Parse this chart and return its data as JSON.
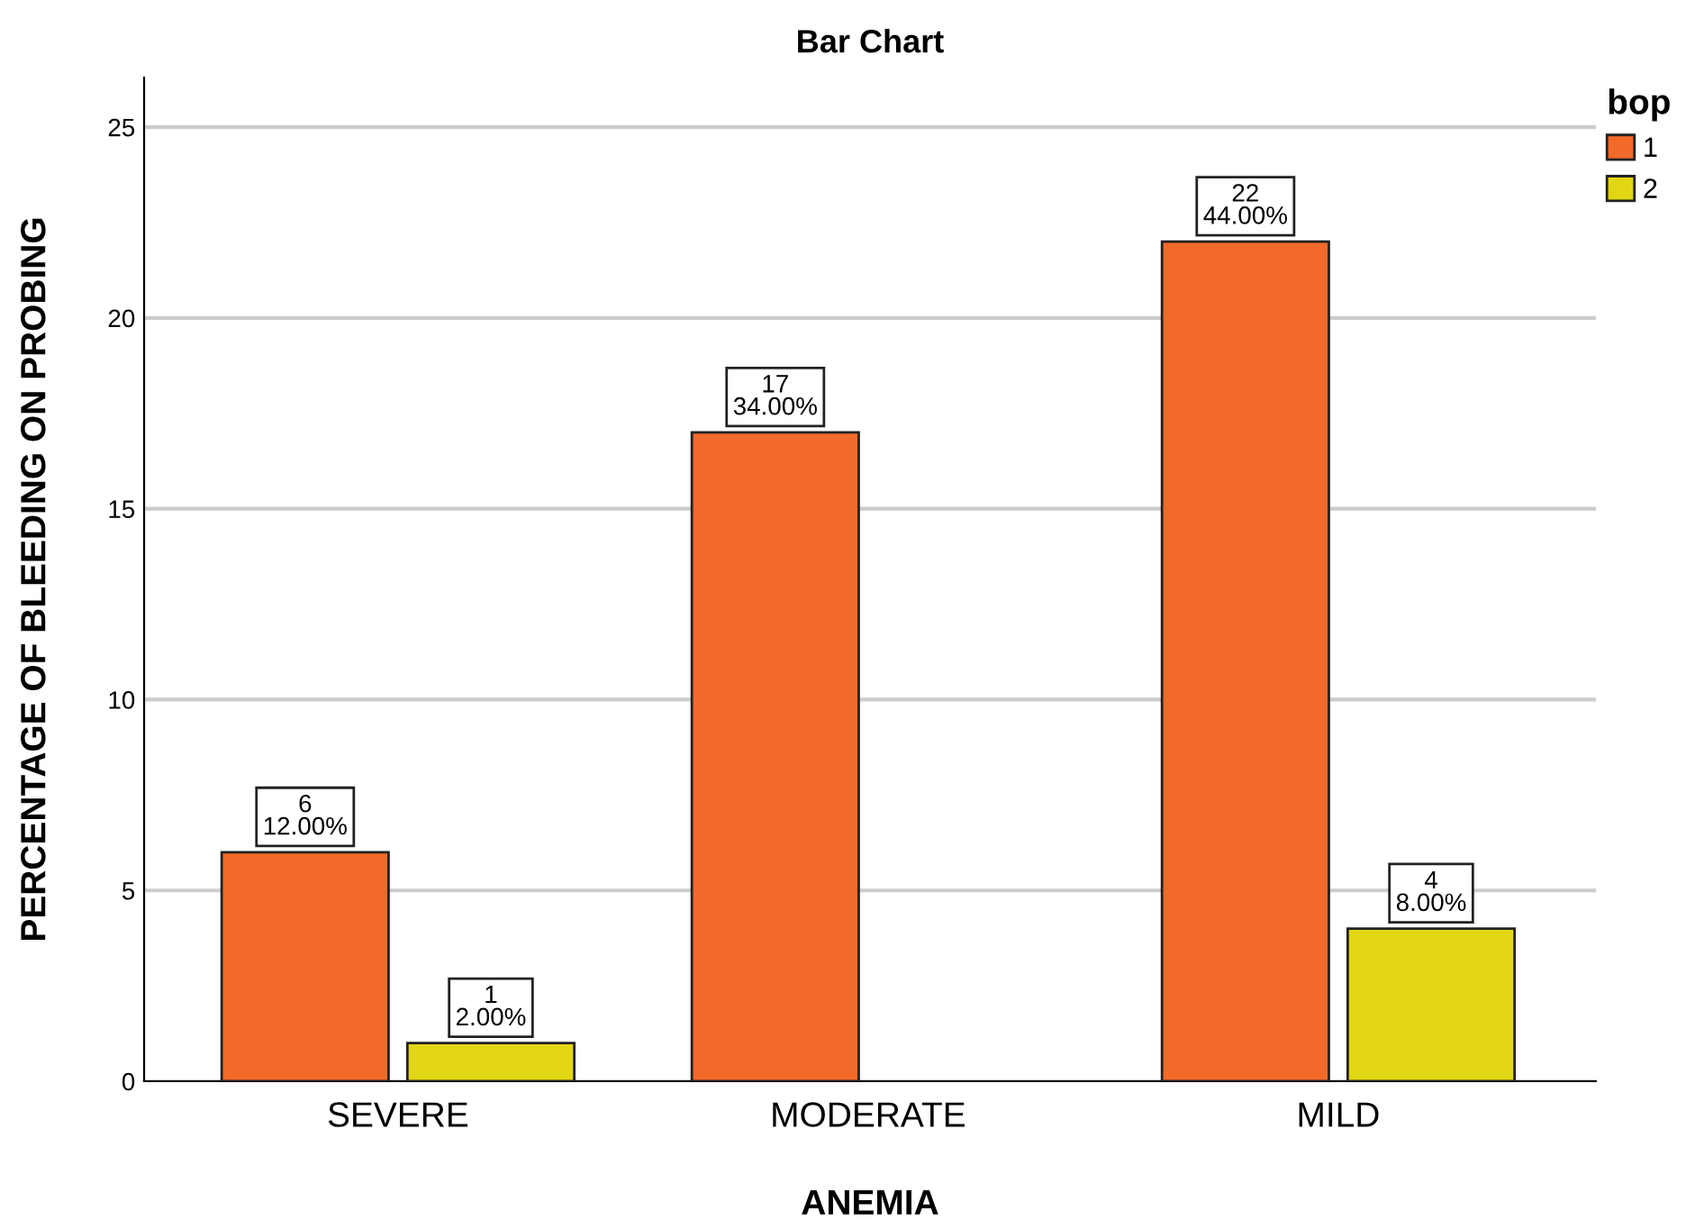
{
  "chart_data": {
    "type": "bar",
    "title": "Bar Chart",
    "xlabel": "ANEMIA",
    "ylabel": "PERCENTAGE OF BLEEDING ON PROBING",
    "legend_title": "bop",
    "categories": [
      "SEVERE",
      "MODERATE",
      "MILD"
    ],
    "series": [
      {
        "name": "1",
        "color": "#f26a2a",
        "values": [
          6,
          17,
          22
        ],
        "value_labels": [
          "6\n12.00%",
          "17\n34.00%",
          "22\n44.00%"
        ]
      },
      {
        "name": "2",
        "color": "#e2d614",
        "values": [
          1,
          null,
          4
        ],
        "value_labels": [
          "1\n2.00%",
          null,
          "4\n8.00%"
        ]
      }
    ],
    "ylim": [
      0,
      26.3
    ],
    "yticks": [
      0,
      5,
      10,
      15,
      20,
      25
    ],
    "grid": "y",
    "legend": "top right"
  }
}
